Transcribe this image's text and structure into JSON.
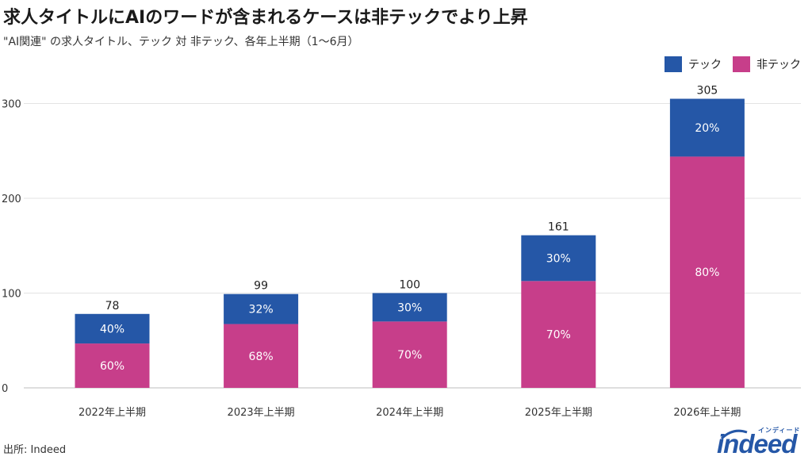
{
  "title": "求人タイトルにAIのワードが含まれるケースは非テックでより上昇",
  "subtitle": "\"AI関連\" の求人タイトル、テック 対 非テック、各年上半期（1〜6月）",
  "legend": [
    {
      "label": "テック",
      "color": "#2557a7"
    },
    {
      "label": "非テック",
      "color": "#c73e8a"
    }
  ],
  "source": "出所: Indeed",
  "logo": {
    "word": "indeed",
    "kana": "インディード"
  },
  "chart_data": {
    "type": "bar",
    "stacked": true,
    "categories": [
      "2022年上半期",
      "2023年上半期",
      "2024年上半期",
      "2025年上半期",
      "2026年上半期"
    ],
    "totals": [
      78,
      99,
      100,
      161,
      305
    ],
    "series": [
      {
        "name": "非テック",
        "color": "#c73e8a",
        "percent_labels": [
          "60%",
          "68%",
          "70%",
          "70%",
          "80%"
        ],
        "shares": [
          0.6,
          0.68,
          0.7,
          0.7,
          0.8
        ]
      },
      {
        "name": "テック",
        "color": "#2557a7",
        "percent_labels": [
          "40%",
          "32%",
          "30%",
          "30%",
          "20%"
        ],
        "shares": [
          0.4,
          0.32,
          0.3,
          0.3,
          0.2
        ]
      }
    ],
    "y_ticks": [
      0,
      100,
      200,
      300
    ],
    "ylim": [
      0,
      320
    ],
    "grid": true,
    "legend_position": "top-right"
  }
}
